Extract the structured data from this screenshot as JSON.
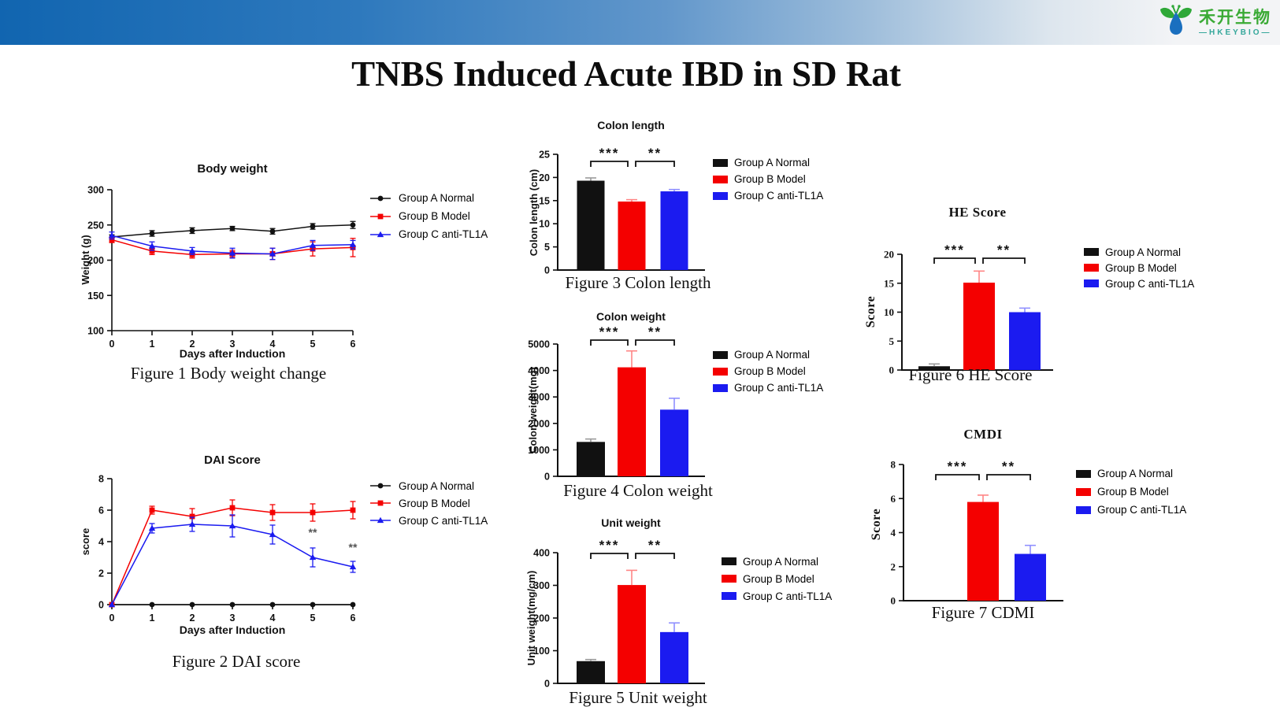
{
  "title": "TNBS Induced Acute IBD in SD Rat",
  "header": {
    "logo_cn": "禾开生物",
    "logo_en": "—HKEYBIO—",
    "brand_green": "#3aaa35",
    "brand_teal": "#35a79b",
    "bar_blue": "#1165b0"
  },
  "groups": [
    {
      "label": "Group A Normal",
      "color": "#111111",
      "err_color": "#9a9a9a",
      "marker": "circle"
    },
    {
      "label": "Group B Model",
      "color": "#f40000",
      "err_color": "#ff8585",
      "marker": "square"
    },
    {
      "label": "Group C anti-TL1A",
      "color": "#1b1bf0",
      "err_color": "#9090ff",
      "marker": "triangle"
    }
  ],
  "chart_data": [
    {
      "type": "line",
      "title": "Body weight",
      "xlabel": "Days after Induction",
      "ylabel": "Weight (g)",
      "caption": "Figure 1 Body weight change",
      "x": [
        0,
        1,
        2,
        3,
        4,
        5,
        6
      ],
      "ylim": [
        100,
        300
      ],
      "yticks": [
        100,
        150,
        200,
        250,
        300
      ],
      "series": [
        {
          "group": 0,
          "values": [
            233,
            238,
            242,
            245,
            241,
            248,
            250
          ],
          "errors": [
            3,
            4,
            4,
            3,
            4,
            4,
            5
          ]
        },
        {
          "group": 1,
          "values": [
            229,
            213,
            208,
            209,
            209,
            216,
            218
          ],
          "errors": [
            4,
            5,
            5,
            5,
            8,
            10,
            13
          ]
        },
        {
          "group": 2,
          "values": [
            235,
            220,
            213,
            210,
            209,
            221,
            222
          ],
          "errors": [
            5,
            6,
            5,
            7,
            8,
            7,
            6
          ]
        }
      ],
      "annotations": []
    },
    {
      "type": "line",
      "title": "DAI Score",
      "xlabel": "Days after Induction",
      "ylabel": "score",
      "caption": "Figure 2 DAI score",
      "x": [
        0,
        1,
        2,
        3,
        4,
        5,
        6
      ],
      "ylim": [
        0,
        8
      ],
      "yticks": [
        0,
        2,
        4,
        6,
        8
      ],
      "series": [
        {
          "group": 0,
          "values": [
            0,
            0,
            0,
            0,
            0,
            0,
            0
          ],
          "errors": [
            0,
            0,
            0,
            0,
            0,
            0,
            0
          ]
        },
        {
          "group": 1,
          "values": [
            0,
            6.0,
            5.6,
            6.15,
            5.85,
            5.85,
            6.0
          ],
          "errors": [
            0,
            0.25,
            0.5,
            0.5,
            0.5,
            0.55,
            0.55
          ]
        },
        {
          "group": 2,
          "values": [
            0,
            4.85,
            5.1,
            5.0,
            4.45,
            3.0,
            2.4
          ],
          "errors": [
            0,
            0.3,
            0.45,
            0.7,
            0.6,
            0.6,
            0.35
          ]
        }
      ],
      "annotations": [
        {
          "x": 5,
          "y": 4.35,
          "text": "**"
        },
        {
          "x": 6,
          "y": 3.4,
          "text": "**"
        }
      ]
    },
    {
      "type": "bar",
      "title": "Colon length",
      "ylabel": "Colon length (cm)",
      "caption": "Figure 3 Colon length",
      "categories": [
        "Group A Normal",
        "Group B Model",
        "Group C anti-TL1A"
      ],
      "ylim": [
        0,
        25
      ],
      "yticks": [
        0,
        5,
        10,
        15,
        20,
        25
      ],
      "values": [
        19.3,
        14.8,
        17.0
      ],
      "errors": [
        0.6,
        0.4,
        0.4
      ],
      "sig": [
        {
          "from": 0,
          "to": 1,
          "label": "***"
        },
        {
          "from": 1,
          "to": 2,
          "label": "**"
        }
      ]
    },
    {
      "type": "bar",
      "title": "Colon weight",
      "ylabel": "Colon weight(mg)",
      "caption": "Figure 4 Colon weight",
      "categories": [
        "Group A Normal",
        "Group B Model",
        "Group C anti-TL1A"
      ],
      "ylim": [
        0,
        5000
      ],
      "yticks": [
        0,
        1000,
        2000,
        3000,
        4000,
        5000
      ],
      "values": [
        1300,
        4120,
        2520
      ],
      "errors": [
        110,
        620,
        430
      ],
      "sig": [
        {
          "from": 0,
          "to": 1,
          "label": "***"
        },
        {
          "from": 1,
          "to": 2,
          "label": "**"
        }
      ]
    },
    {
      "type": "bar",
      "title": "Unit weight",
      "ylabel": "Unit weight(mg/cm)",
      "caption": "Figure 5 Unit weight",
      "categories": [
        "Group A Normal",
        "Group B Model",
        "Group C anti-TL1A"
      ],
      "ylim": [
        0,
        400
      ],
      "yticks": [
        0,
        100,
        200,
        300,
        400
      ],
      "values": [
        68,
        301,
        157
      ],
      "errors": [
        5,
        45,
        28
      ],
      "sig": [
        {
          "from": 0,
          "to": 1,
          "label": "***"
        },
        {
          "from": 1,
          "to": 2,
          "label": "**"
        }
      ]
    },
    {
      "type": "bar",
      "title": "HE Score",
      "ylabel": "Score",
      "caption": "Figure 6 HE Score",
      "serif": true,
      "categories": [
        "Group A Normal",
        "Group B Model",
        "Group C anti-TL1A"
      ],
      "ylim": [
        0,
        20
      ],
      "yticks": [
        0,
        5,
        10,
        15,
        20
      ],
      "values": [
        0.65,
        15.1,
        10.0
      ],
      "errors": [
        0.4,
        2.0,
        0.7
      ],
      "sig": [
        {
          "from": 0,
          "to": 1,
          "label": "***"
        },
        {
          "from": 1,
          "to": 2,
          "label": "**"
        }
      ]
    },
    {
      "type": "bar",
      "title": "CMDI",
      "ylabel": "Score",
      "caption": "Figure 7 CDMI",
      "serif": true,
      "categories": [
        "Group A Normal",
        "Group B Model",
        "Group C anti-TL1A"
      ],
      "ylim": [
        0,
        8
      ],
      "yticks": [
        0,
        2,
        4,
        6,
        8
      ],
      "values": [
        0,
        5.8,
        2.75
      ],
      "errors": [
        0,
        0.4,
        0.5
      ],
      "sig": [
        {
          "from": 0,
          "to": 1,
          "label": "***"
        },
        {
          "from": 1,
          "to": 2,
          "label": "**"
        }
      ]
    }
  ]
}
